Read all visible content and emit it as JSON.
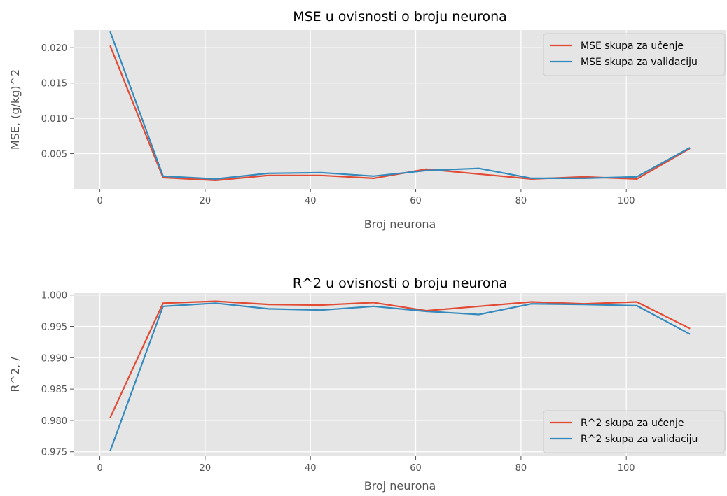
{
  "chart_data": [
    {
      "type": "line",
      "title": "MSE u ovisnosti o broju neurona",
      "xlabel": "Broj neurona",
      "ylabel": "MSE, (g/kg)^2",
      "x": [
        2,
        12,
        22,
        32,
        42,
        52,
        62,
        72,
        82,
        92,
        102,
        112
      ],
      "xlim": [
        -5,
        119
      ],
      "ylim": [
        0.0,
        0.0225
      ],
      "xticks": [
        0,
        20,
        40,
        60,
        80,
        100
      ],
      "xtick_labels": [
        "0",
        "20",
        "40",
        "60",
        "80",
        "100"
      ],
      "yticks": [
        0.005,
        0.01,
        0.015,
        0.02
      ],
      "ytick_labels": [
        "0.005",
        "0.010",
        "0.015",
        "0.020"
      ],
      "grid": true,
      "legend_position": "top-right",
      "series": [
        {
          "name": "MSE skupa za učenje",
          "color": "#E24A33",
          "values": [
            0.0202,
            0.0016,
            0.0012,
            0.0019,
            0.0019,
            0.0015,
            0.0028,
            0.0021,
            0.0014,
            0.0017,
            0.0014,
            0.0057
          ]
        },
        {
          "name": "MSE skupa za validaciju",
          "color": "#348ABD",
          "values": [
            0.0222,
            0.0018,
            0.0014,
            0.0022,
            0.0023,
            0.0018,
            0.0026,
            0.0029,
            0.0015,
            0.0015,
            0.0017,
            0.0058
          ]
        }
      ]
    },
    {
      "type": "line",
      "title": "R^2 u ovisnosti o broju neurona",
      "xlabel": "Broj neurona",
      "ylabel": "R^2, /",
      "x": [
        2,
        12,
        22,
        32,
        42,
        52,
        62,
        72,
        82,
        92,
        102,
        112
      ],
      "xlim": [
        -5,
        119
      ],
      "ylim": [
        0.9743,
        1.0003
      ],
      "xticks": [
        0,
        20,
        40,
        60,
        80,
        100
      ],
      "xtick_labels": [
        "0",
        "20",
        "40",
        "60",
        "80",
        "100"
      ],
      "yticks": [
        0.975,
        0.98,
        0.985,
        0.99,
        0.995,
        1.0
      ],
      "ytick_labels": [
        "0.975",
        "0.980",
        "0.985",
        "0.990",
        "0.995",
        "1.000"
      ],
      "grid": true,
      "legend_position": "bottom-right",
      "series": [
        {
          "name": "R^2 skupa za učenje",
          "color": "#E24A33",
          "values": [
            0.9805,
            0.9987,
            0.999,
            0.9985,
            0.9984,
            0.9988,
            0.9975,
            0.9982,
            0.9989,
            0.9986,
            0.9989,
            0.9947
          ]
        },
        {
          "name": "R^2 skupa za validaciju",
          "color": "#348ABD",
          "values": [
            0.9752,
            0.9982,
            0.9987,
            0.9978,
            0.9976,
            0.9982,
            0.9974,
            0.9969,
            0.9986,
            0.9985,
            0.9983,
            0.9938
          ]
        }
      ]
    }
  ],
  "style": {
    "plot_background": "#E5E5E5",
    "grid_color": "#FFFFFF",
    "text_color": "#555555"
  }
}
